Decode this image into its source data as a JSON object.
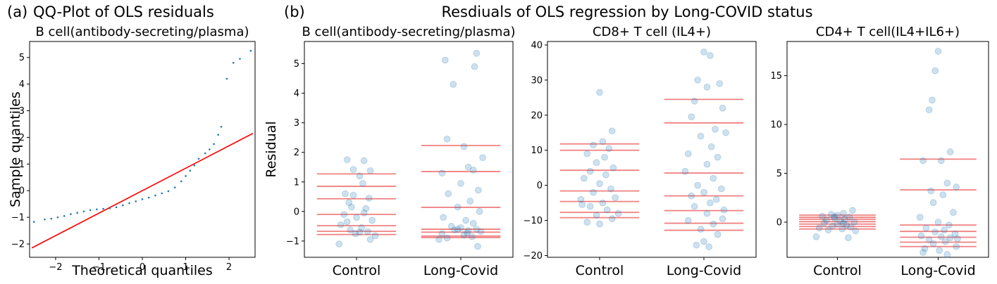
{
  "panel_labels": {
    "a": "(a)",
    "b": "(b)"
  },
  "titles": {
    "a_main": "QQ-Plot of OLS residuals",
    "b_main": "Resdiuals of OLS regression by Long-COVID status"
  },
  "colors": {
    "points": "#1f77b4",
    "ref_line": "#ff0000",
    "quantile_lines": "#f08080"
  },
  "chart_data": [
    {
      "type": "scatter",
      "title": "B cell(antibody-secreting/plasma)",
      "xlabel": "Theoretical quantiles",
      "ylabel": "Sample quantiles",
      "xlim": [
        -2.6,
        2.6
      ],
      "ylim": [
        -2.5,
        5.6
      ],
      "xticks": [
        "-2",
        "-1",
        "0",
        "1",
        "2"
      ],
      "yticks": [
        "-2",
        "-1",
        "0",
        "1",
        "2",
        "3",
        "4",
        "5"
      ],
      "reference_line": {
        "x": [
          -2.55,
          2.55
        ],
        "y": [
          -2.15,
          2.15
        ]
      },
      "points": [
        [
          -2.5,
          -1.17
        ],
        [
          -2.25,
          -1.08
        ],
        [
          -2.1,
          -1.05
        ],
        [
          -1.95,
          -1.0
        ],
        [
          -1.8,
          -0.95
        ],
        [
          -1.65,
          -0.88
        ],
        [
          -1.5,
          -0.83
        ],
        [
          -1.35,
          -0.78
        ],
        [
          -1.2,
          -0.73
        ],
        [
          -1.05,
          -0.7
        ],
        [
          -0.9,
          -0.68
        ],
        [
          -0.75,
          -0.66
        ],
        [
          -0.6,
          -0.62
        ],
        [
          -0.45,
          -0.55
        ],
        [
          -0.3,
          -0.47
        ],
        [
          -0.15,
          -0.4
        ],
        [
          0.0,
          -0.32
        ],
        [
          0.15,
          -0.26
        ],
        [
          0.3,
          -0.18
        ],
        [
          0.45,
          -0.1
        ],
        [
          0.6,
          -0.02
        ],
        [
          0.75,
          0.12
        ],
        [
          0.9,
          0.35
        ],
        [
          1.0,
          0.55
        ],
        [
          1.1,
          0.75
        ],
        [
          1.2,
          0.95
        ],
        [
          1.3,
          1.2
        ],
        [
          1.45,
          1.4
        ],
        [
          1.55,
          1.55
        ],
        [
          1.65,
          1.75
        ],
        [
          1.75,
          2.1
        ],
        [
          1.82,
          2.4
        ],
        [
          1.95,
          4.2
        ],
        [
          2.1,
          4.8
        ],
        [
          2.25,
          4.95
        ],
        [
          2.5,
          5.25
        ]
      ]
    },
    {
      "type": "scatter",
      "title": "B cell(antibody-secreting/plasma)",
      "ylabel": "Residual",
      "categories": [
        "Control",
        "Long-Covid"
      ],
      "ylim": [
        -1.55,
        5.75
      ],
      "yticks": [
        "-1",
        "0",
        "1",
        "2",
        "3",
        "4",
        "5"
      ],
      "quantile_lines": {
        "Control": [
          1.27,
          0.85,
          0.43,
          -0.1,
          -0.48,
          -0.67,
          -0.78
        ],
        "Long-Covid": [
          2.23,
          1.35,
          0.14,
          -0.6,
          -0.7,
          -0.83,
          -0.88
        ]
      },
      "series": [
        {
          "category": "Control",
          "points": [
            [
              -0.15,
              1.75
            ],
            [
              0.12,
              1.72
            ],
            [
              -0.05,
              1.42
            ],
            [
              0.22,
              1.38
            ],
            [
              0.05,
              1.2
            ],
            [
              -0.18,
              0.6
            ],
            [
              0.1,
              0.95
            ],
            [
              -0.05,
              0.55
            ],
            [
              0.2,
              0.45
            ],
            [
              -0.12,
              0.3
            ],
            [
              0.15,
              0.1
            ],
            [
              -0.2,
              -0.1
            ],
            [
              0.0,
              -0.2
            ],
            [
              0.25,
              -0.3
            ],
            [
              -0.25,
              -0.45
            ],
            [
              0.08,
              -0.55
            ],
            [
              -0.1,
              -0.62
            ],
            [
              0.18,
              -0.68
            ],
            [
              -0.02,
              -0.75
            ],
            [
              0.3,
              -0.82
            ],
            [
              -0.28,
              -1.1
            ],
            [
              0.22,
              -0.95
            ],
            [
              0.05,
              -0.7
            ],
            [
              -0.15,
              -0.35
            ],
            [
              0.12,
              -0.05
            ],
            [
              -0.08,
              0.15
            ]
          ]
        },
        {
          "category": "Long-Covid",
          "points": [
            [
              0.25,
              5.35
            ],
            [
              -0.25,
              5.12
            ],
            [
              0.22,
              4.9
            ],
            [
              -0.12,
              4.3
            ],
            [
              -0.22,
              2.45
            ],
            [
              0.05,
              2.2
            ],
            [
              0.35,
              1.82
            ],
            [
              0.12,
              1.5
            ],
            [
              -0.3,
              1.3
            ],
            [
              0.2,
              1.4
            ],
            [
              0.0,
              0.95
            ],
            [
              0.28,
              0.72
            ],
            [
              -0.2,
              0.6
            ],
            [
              0.15,
              0.35
            ],
            [
              -0.05,
              0.15
            ],
            [
              0.3,
              0.0
            ],
            [
              -0.28,
              -0.2
            ],
            [
              0.08,
              -0.3
            ],
            [
              0.2,
              -0.4
            ],
            [
              -0.15,
              -0.5
            ],
            [
              0.0,
              -0.55
            ],
            [
              0.25,
              -0.6
            ],
            [
              -0.1,
              -0.62
            ],
            [
              0.12,
              -0.65
            ],
            [
              0.32,
              -0.68
            ],
            [
              -0.3,
              -0.75
            ],
            [
              0.05,
              -0.8
            ],
            [
              0.18,
              -0.85
            ],
            [
              -0.22,
              -0.9
            ],
            [
              0.27,
              -1.18
            ],
            [
              -0.35,
              -0.95
            ],
            [
              0.1,
              -0.72
            ],
            [
              -0.05,
              -0.6
            ]
          ]
        }
      ]
    },
    {
      "type": "scatter",
      "title": "CD8+ T cell (IL4+)",
      "categories": [
        "Control",
        "Long-Covid"
      ],
      "ylim": [
        -20.5,
        41.0
      ],
      "yticks": [
        "-20",
        "-10",
        "0",
        "10",
        "20",
        "30",
        "40"
      ],
      "quantile_lines": {
        "Control": [
          11.8,
          10.0,
          4.3,
          -1.6,
          -4.6,
          -7.7,
          -9.2
        ],
        "Long-Covid": [
          24.5,
          17.8,
          3.5,
          -3.0,
          -7.2,
          -10.8,
          -12.8
        ]
      },
      "series": [
        {
          "category": "Control",
          "points": [
            [
              0.0,
              26.5
            ],
            [
              0.2,
              15.5
            ],
            [
              0.05,
              12.5
            ],
            [
              -0.1,
              11.5
            ],
            [
              0.15,
              10.5
            ],
            [
              -0.2,
              9.0
            ],
            [
              0.08,
              8.0
            ],
            [
              -0.05,
              6.5
            ],
            [
              0.22,
              5.0
            ],
            [
              -0.15,
              4.0
            ],
            [
              0.1,
              3.0
            ],
            [
              -0.25,
              2.0
            ],
            [
              0.0,
              0.5
            ],
            [
              0.18,
              -1.0
            ],
            [
              -0.1,
              -2.0
            ],
            [
              0.25,
              -3.5
            ],
            [
              -0.3,
              -4.0
            ],
            [
              0.05,
              -5.0
            ],
            [
              -0.15,
              -6.0
            ],
            [
              0.12,
              -7.0
            ],
            [
              -0.05,
              -8.5
            ],
            [
              0.2,
              -9.5
            ],
            [
              -0.2,
              -10.5
            ],
            [
              0.0,
              -11.0
            ],
            [
              0.3,
              -8.0
            ],
            [
              -0.28,
              -5.5
            ]
          ]
        },
        {
          "category": "Long-Covid",
          "points": [
            [
              0.0,
              38.0
            ],
            [
              0.1,
              37.0
            ],
            [
              -0.1,
              30.0
            ],
            [
              0.25,
              29.0
            ],
            [
              0.05,
              28.0
            ],
            [
              -0.15,
              24.0
            ],
            [
              0.3,
              22.0
            ],
            [
              -0.2,
              19.5
            ],
            [
              0.18,
              16.0
            ],
            [
              0.35,
              15.0
            ],
            [
              -0.05,
              14.0
            ],
            [
              0.12,
              11.0
            ],
            [
              -0.25,
              9.0
            ],
            [
              0.22,
              8.0
            ],
            [
              0.05,
              6.0
            ],
            [
              -0.3,
              4.0
            ],
            [
              0.15,
              2.0
            ],
            [
              -0.1,
              0.0
            ],
            [
              0.28,
              -1.0
            ],
            [
              0.0,
              -2.0
            ],
            [
              -0.2,
              -3.0
            ],
            [
              0.2,
              -4.0
            ],
            [
              0.1,
              -5.0
            ],
            [
              -0.15,
              -6.0
            ],
            [
              0.32,
              -7.0
            ],
            [
              0.05,
              -8.0
            ],
            [
              -0.25,
              -10.0
            ],
            [
              0.15,
              -11.0
            ],
            [
              -0.05,
              -12.5
            ],
            [
              0.22,
              -14.0
            ],
            [
              0.0,
              -16.0
            ],
            [
              -0.12,
              -17.0
            ],
            [
              0.08,
              -17.5
            ],
            [
              0.3,
              -9.5
            ]
          ]
        }
      ]
    },
    {
      "type": "scatter",
      "title": "CD4+ T cell(IL4+IL6+)",
      "categories": [
        "Control",
        "Long-Covid"
      ],
      "ylim": [
        -3.6,
        18.5
      ],
      "yticks": [
        "0",
        "5",
        "10",
        "15"
      ],
      "quantile_lines": {
        "Control": [
          0.72,
          0.5,
          0.3,
          0.05,
          -0.2,
          -0.45,
          -0.7
        ],
        "Long-Covid": [
          6.45,
          3.3,
          -0.3,
          -0.95,
          -1.55,
          -2.05,
          -2.5
        ]
      },
      "series": [
        {
          "category": "Control",
          "points": [
            [
              0.25,
              1.2
            ],
            [
              0.1,
              0.9
            ],
            [
              -0.1,
              0.8
            ],
            [
              0.0,
              0.7
            ],
            [
              -0.25,
              0.6
            ],
            [
              0.2,
              0.5
            ],
            [
              -0.05,
              0.4
            ],
            [
              0.12,
              0.3
            ],
            [
              -0.18,
              0.2
            ],
            [
              0.05,
              0.1
            ],
            [
              0.28,
              0.0
            ],
            [
              -0.22,
              -0.1
            ],
            [
              0.0,
              -0.2
            ],
            [
              0.15,
              -0.3
            ],
            [
              -0.08,
              -0.4
            ],
            [
              0.22,
              -0.5
            ],
            [
              -0.3,
              -0.6
            ],
            [
              0.08,
              -0.7
            ],
            [
              -0.15,
              -0.8
            ],
            [
              0.3,
              -0.9
            ],
            [
              -0.35,
              -1.5
            ],
            [
              0.18,
              -1.6
            ],
            [
              -0.05,
              0.55
            ],
            [
              0.1,
              -0.15
            ]
          ]
        },
        {
          "category": "Long-Covid",
          "points": [
            [
              0.0,
              17.5
            ],
            [
              -0.05,
              15.5
            ],
            [
              -0.1,
              12.5
            ],
            [
              -0.15,
              11.5
            ],
            [
              0.2,
              7.2
            ],
            [
              -0.25,
              6.3
            ],
            [
              0.05,
              6.3
            ],
            [
              0.15,
              4.0
            ],
            [
              0.3,
              3.6
            ],
            [
              -0.12,
              3.2
            ],
            [
              0.08,
              2.8
            ],
            [
              -0.08,
              2.0
            ],
            [
              0.25,
              1.0
            ],
            [
              -0.3,
              0.5
            ],
            [
              0.0,
              0.0
            ],
            [
              0.18,
              -0.3
            ],
            [
              -0.2,
              -0.6
            ],
            [
              0.1,
              -0.8
            ],
            [
              -0.05,
              -1.0
            ],
            [
              0.28,
              -1.2
            ],
            [
              -0.28,
              -1.4
            ],
            [
              0.05,
              -1.5
            ],
            [
              0.2,
              -1.6
            ],
            [
              -0.15,
              -1.8
            ],
            [
              0.12,
              -2.0
            ],
            [
              -0.08,
              -2.2
            ],
            [
              0.3,
              -2.5
            ],
            [
              -0.22,
              -2.7
            ],
            [
              0.02,
              -2.9
            ],
            [
              -0.25,
              -3.1
            ],
            [
              0.15,
              -3.3
            ],
            [
              0.32,
              -1.7
            ]
          ]
        }
      ]
    }
  ]
}
